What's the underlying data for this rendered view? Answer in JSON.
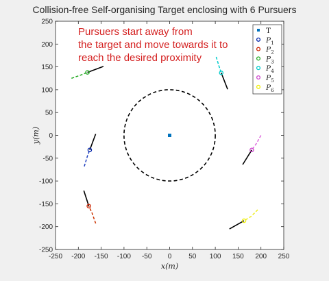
{
  "chart_data": {
    "type": "scatter",
    "title": "Collision-free Self-organising Target enclosing with 6 Pursuers",
    "xlabel": "x(m)",
    "ylabel": "y(m)",
    "xlim": [
      -250,
      250
    ],
    "ylim": [
      -250,
      250
    ],
    "xticks": [
      -250,
      -200,
      -150,
      -100,
      -50,
      0,
      50,
      100,
      150,
      200,
      250
    ],
    "yticks": [
      -250,
      -200,
      -150,
      -100,
      -50,
      0,
      50,
      100,
      150,
      200,
      250
    ],
    "grid": false,
    "legend_position": "top-right",
    "annotation": {
      "lines": [
        "Pursuers start away from",
        "the target and move towards it to",
        "reach the desired proximity"
      ],
      "color": "#d42020"
    },
    "circle": {
      "center": [
        0,
        0
      ],
      "radius": 100,
      "style": "dashed",
      "color": "#000000"
    },
    "target": {
      "name": "T",
      "x": 0,
      "y": 0,
      "color": "#0072bd"
    },
    "pursuers": [
      {
        "name": "P",
        "sub": "1",
        "color": "#0022aa",
        "dash_color": "#1f3fbf",
        "position": [
          -175,
          -32
        ],
        "trail": [
          [
            -187,
            -68
          ],
          [
            -180,
            -45
          ],
          [
            -175,
            -32
          ]
        ],
        "heading_end": [
          -162,
          3
        ]
      },
      {
        "name": "P",
        "sub": "2",
        "color": "#cc2200",
        "dash_color": "#cc3300",
        "position": [
          -177,
          -155
        ],
        "trail": [
          [
            -162,
            -193
          ],
          [
            -170,
            -170
          ],
          [
            -177,
            -155
          ]
        ],
        "heading_end": [
          -188,
          -121
        ]
      },
      {
        "name": "P",
        "sub": "3",
        "color": "#22aa22",
        "dash_color": "#22aa22",
        "position": [
          -180,
          138
        ],
        "trail": [
          [
            -215,
            125
          ],
          [
            -195,
            132
          ],
          [
            -180,
            138
          ]
        ],
        "heading_end": [
          -145,
          151
        ]
      },
      {
        "name": "P",
        "sub": "4",
        "color": "#00cccc",
        "dash_color": "#00cccc",
        "position": [
          113,
          137
        ],
        "trail": [
          [
            102,
            172
          ],
          [
            108,
            152
          ],
          [
            113,
            137
          ]
        ],
        "heading_end": [
          127,
          101
        ]
      },
      {
        "name": "P",
        "sub": "5",
        "color": "#cc44cc",
        "dash_color": "#dd66dd",
        "position": [
          180,
          -32
        ],
        "trail": [
          [
            200,
            0
          ],
          [
            190,
            -18
          ],
          [
            180,
            -32
          ]
        ],
        "heading_end": [
          160,
          -64
        ]
      },
      {
        "name": "P",
        "sub": "6",
        "color": "#eeee00",
        "dash_color": "#eeee22",
        "position": [
          163,
          -187
        ],
        "trail": [
          [
            193,
            -163
          ],
          [
            178,
            -178
          ],
          [
            163,
            -187
          ]
        ],
        "heading_end": [
          131,
          -205
        ]
      }
    ]
  }
}
